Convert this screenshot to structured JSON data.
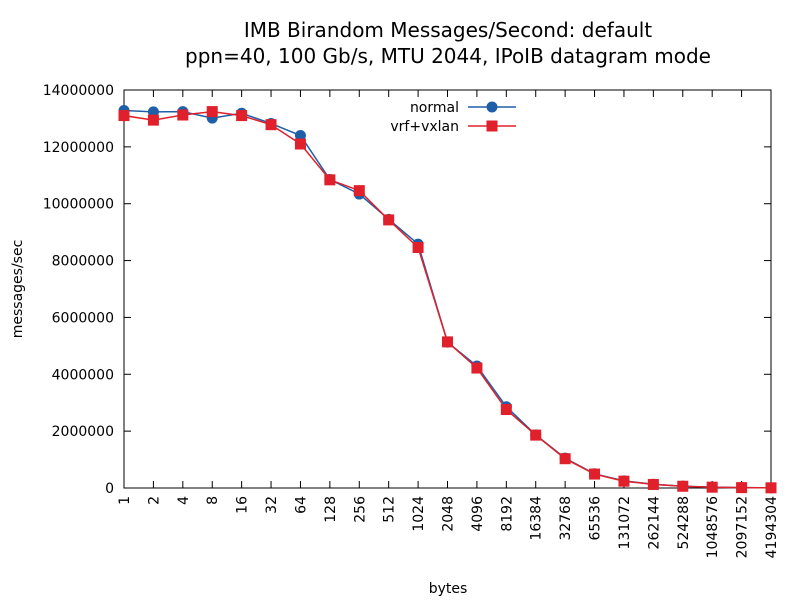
{
  "chart_data": {
    "type": "line",
    "title": "IMB Birandom Messages/Second: default",
    "subtitle": "ppn=40, 100 Gb/s, MTU 2044, IPoIB datagram mode",
    "xlabel": "bytes",
    "ylabel": "messages/sec",
    "ylim": [
      0,
      14000000
    ],
    "y_ticks": [
      "0",
      "2000000",
      "4000000",
      "6000000",
      "8000000",
      "10000000",
      "12000000",
      "14000000"
    ],
    "categories": [
      "1",
      "2",
      "4",
      "8",
      "16",
      "32",
      "64",
      "128",
      "256",
      "512",
      "1024",
      "2048",
      "4096",
      "8192",
      "16384",
      "32768",
      "65536",
      "131072",
      "262144",
      "524288",
      "1048576",
      "2097152",
      "4194304"
    ],
    "grid": false,
    "legend_position": "top-center",
    "series": [
      {
        "name": "normal",
        "color": "#1f5fa8",
        "marker": "circle",
        "values": [
          13280000,
          13230000,
          13240000,
          13010000,
          13180000,
          12820000,
          12400000,
          10850000,
          10340000,
          9450000,
          8580000,
          5130000,
          4290000,
          2860000,
          1870000,
          1050000,
          500000,
          250000,
          130000,
          65000,
          30000,
          14000,
          7000
        ]
      },
      {
        "name": "vrf+vxlan",
        "color": "#e0202a",
        "marker": "square",
        "values": [
          13100000,
          12940000,
          13120000,
          13240000,
          13100000,
          12780000,
          12100000,
          10840000,
          10460000,
          9430000,
          8460000,
          5140000,
          4220000,
          2760000,
          1860000,
          1030000,
          490000,
          240000,
          125000,
          62000,
          29000,
          13500,
          6500
        ]
      }
    ]
  }
}
